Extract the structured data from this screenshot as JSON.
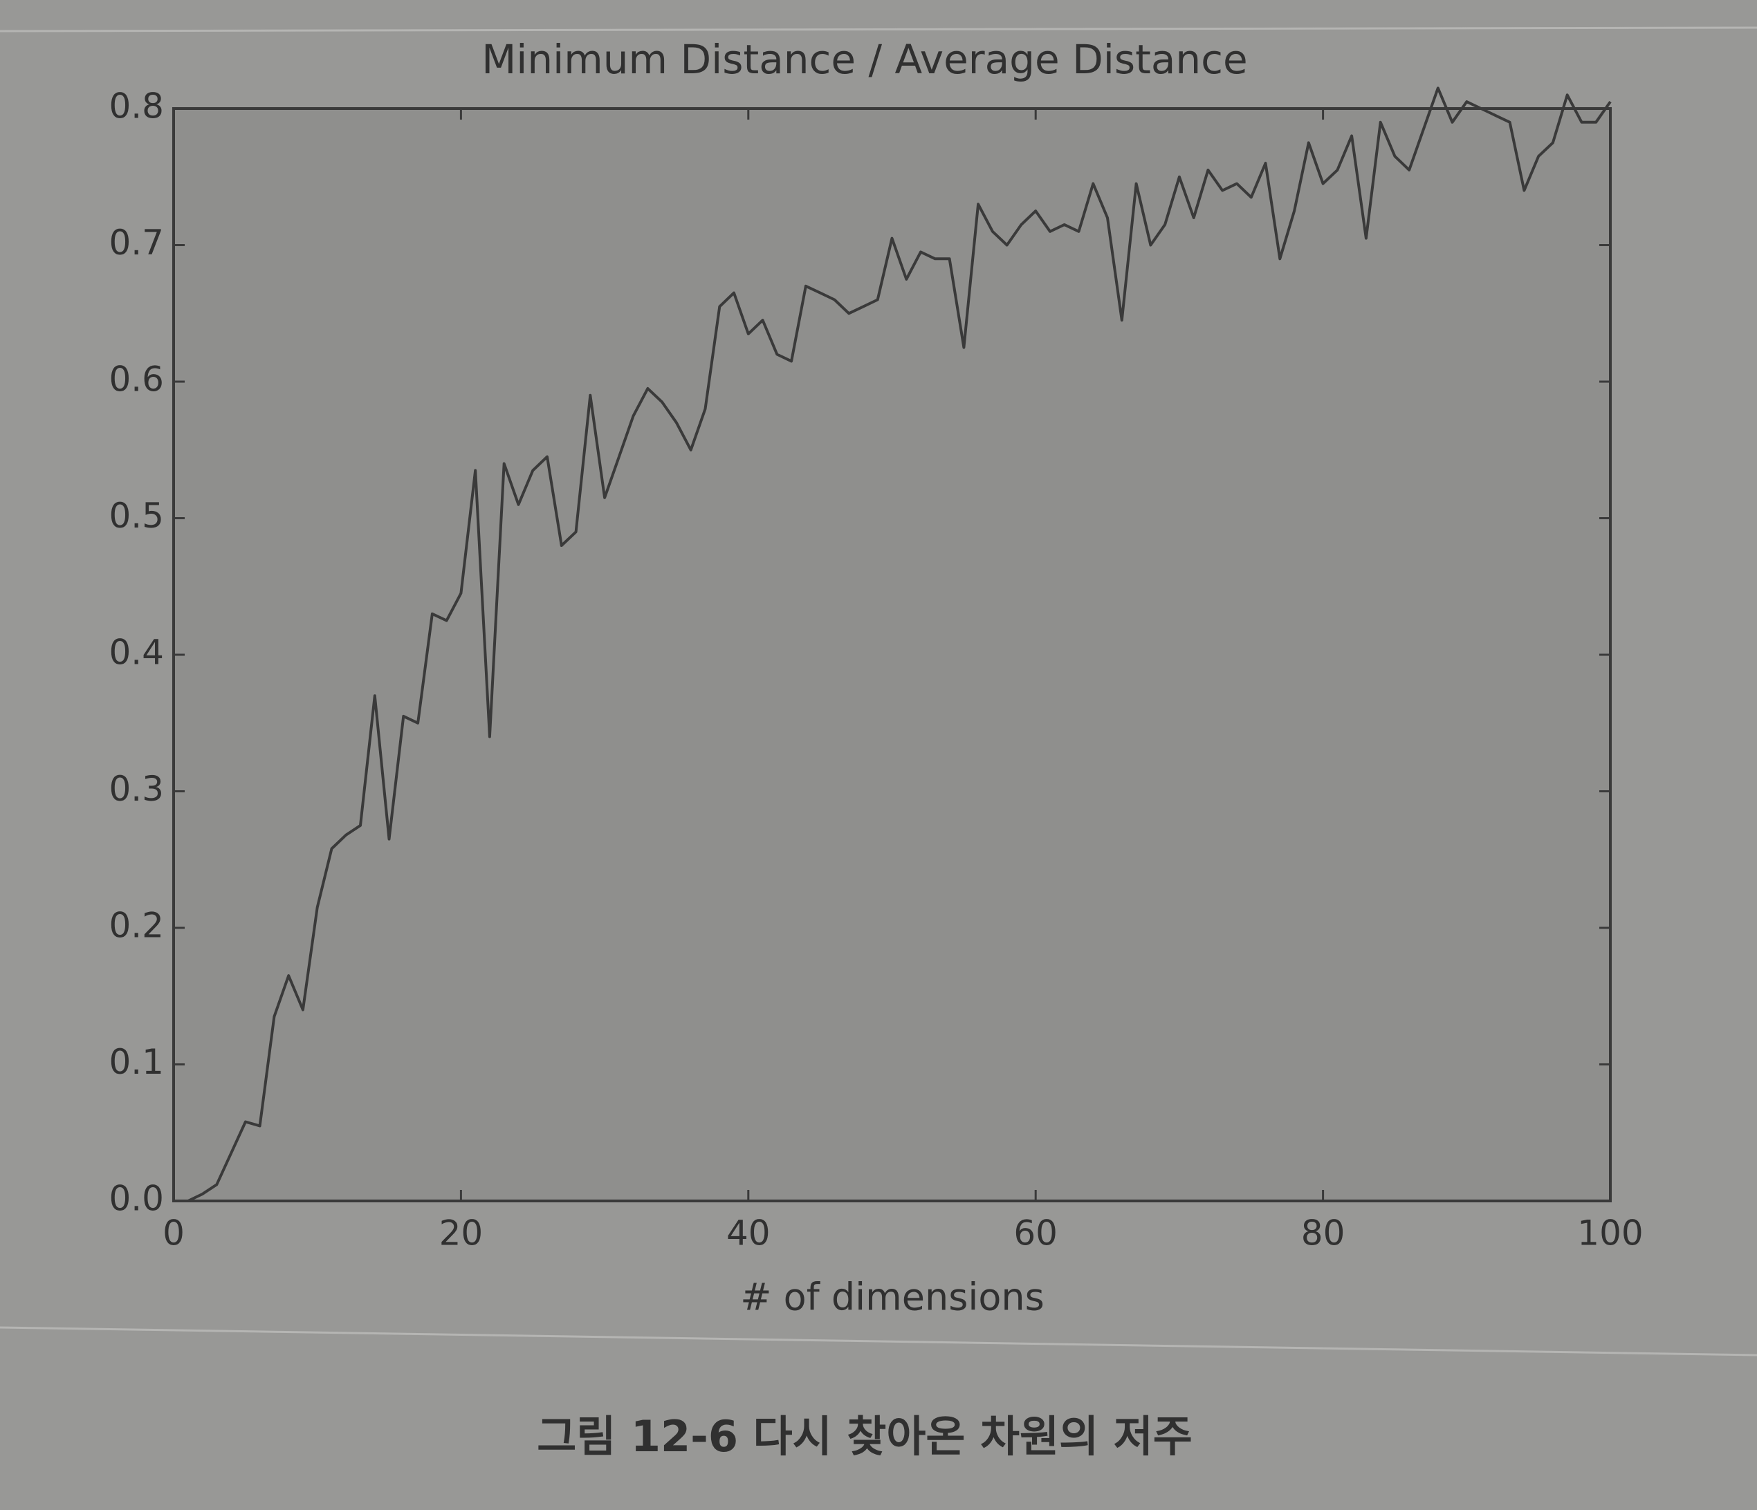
{
  "chart_data": {
    "type": "line",
    "title": "Minimum Distance / Average Distance",
    "xlabel": "# of dimensions",
    "caption": "그림 12-6 다시 찾아온 차원의 저주",
    "x": [
      1,
      2,
      3,
      4,
      5,
      6,
      7,
      8,
      9,
      10,
      11,
      12,
      13,
      14,
      15,
      16,
      17,
      18,
      19,
      20,
      21,
      22,
      23,
      24,
      25,
      26,
      27,
      28,
      29,
      30,
      31,
      32,
      33,
      34,
      35,
      36,
      37,
      38,
      39,
      40,
      41,
      42,
      43,
      44,
      45,
      46,
      47,
      48,
      49,
      50,
      51,
      52,
      53,
      54,
      55,
      56,
      57,
      58,
      59,
      60,
      61,
      62,
      63,
      64,
      65,
      66,
      67,
      68,
      69,
      70,
      71,
      72,
      73,
      74,
      75,
      76,
      77,
      78,
      79,
      80,
      81,
      82,
      83,
      84,
      85,
      86,
      87,
      88,
      89,
      90,
      91,
      92,
      93,
      94,
      95,
      96,
      97,
      98,
      99,
      100
    ],
    "values": [
      0.0,
      0.005,
      0.012,
      0.035,
      0.058,
      0.055,
      0.135,
      0.165,
      0.14,
      0.215,
      0.258,
      0.268,
      0.275,
      0.37,
      0.265,
      0.355,
      0.35,
      0.43,
      0.425,
      0.445,
      0.535,
      0.34,
      0.54,
      0.51,
      0.535,
      0.545,
      0.48,
      0.49,
      0.59,
      0.515,
      0.545,
      0.575,
      0.595,
      0.585,
      0.57,
      0.55,
      0.58,
      0.655,
      0.665,
      0.635,
      0.645,
      0.62,
      0.615,
      0.67,
      0.665,
      0.66,
      0.65,
      0.655,
      0.66,
      0.705,
      0.675,
      0.695,
      0.69,
      0.69,
      0.625,
      0.73,
      0.71,
      0.7,
      0.715,
      0.725,
      0.71,
      0.715,
      0.71,
      0.745,
      0.72,
      0.645,
      0.745,
      0.7,
      0.715,
      0.75,
      0.72,
      0.755,
      0.74,
      0.745,
      0.735,
      0.76,
      0.69,
      0.725,
      0.775,
      0.745,
      0.755,
      0.78,
      0.705,
      0.79,
      0.765,
      0.755,
      0.785,
      0.815,
      0.79,
      0.805,
      0.8,
      0.795,
      0.79,
      0.74,
      0.765,
      0.775,
      0.81,
      0.79,
      0.79,
      0.805
    ],
    "color": "#3a3a3a",
    "xlim": [
      0,
      100
    ],
    "xticks": [
      0,
      20,
      40,
      60,
      80,
      100
    ],
    "ylim": [
      0,
      0.8
    ],
    "yticks": [
      {
        "value": 0,
        "label": "0.0"
      },
      0.1,
      0.2,
      0.3,
      0.4,
      0.5,
      0.6,
      0.7,
      0.8
    ]
  }
}
